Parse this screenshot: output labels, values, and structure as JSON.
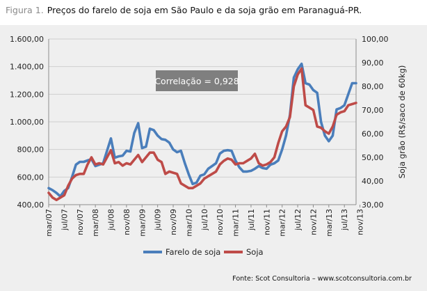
{
  "figure": {
    "label": "Figura 1.",
    "title": "Preços do farelo de soja em São Paulo e da soja grão em Paranaguá-PR.",
    "source": "Fonte: Scot Consultoria – www.scotconsultoria.com.br"
  },
  "chart_data": {
    "type": "line",
    "title": "Preços do farelo de soja em São Paulo e da soja grão em Paranaguá-PR.",
    "xlabel": "",
    "ylabel": "",
    "y2label": "Soja grão (R$/saco de 60kg)",
    "ylim": [
      400,
      1600
    ],
    "y2lim": [
      30,
      100
    ],
    "yticks": [
      "400,00",
      "600,00",
      "800,00",
      "1.000,00",
      "1.200,00",
      "1.400,00",
      "1.600,00"
    ],
    "y2ticks": [
      "30,00",
      "40,00",
      "50,00",
      "60,00",
      "70,00",
      "80,00",
      "90,00",
      "100,00"
    ],
    "x_tick_labels": [
      "mar/07",
      "jul/07",
      "nov/07",
      "mar/08",
      "jul/08",
      "nov/08",
      "mar/09",
      "jul/09",
      "nov/09",
      "mar/10",
      "jul/10",
      "nov/10",
      "mar/11",
      "jul/11",
      "nov/11",
      "mar/12",
      "jul/12",
      "nov/12",
      "mar/13",
      "jul/13",
      "nov/13"
    ],
    "grid": true,
    "legend_position": "bottom",
    "annotation": "Correlação = 0,928",
    "colors": {
      "farelo": "#4a7ebb",
      "soja": "#be4b48",
      "annotation_bg": "#7f7f7f",
      "panel_bg": "#efefef"
    },
    "series": [
      {
        "name": "Farelo de soja",
        "axis": "left",
        "values": [
          520,
          505,
          485,
          460,
          500,
          520,
          600,
          690,
          710,
          710,
          720,
          730,
          680,
          690,
          700,
          790,
          880,
          740,
          750,
          755,
          790,
          785,
          920,
          990,
          810,
          820,
          950,
          940,
          900,
          875,
          870,
          850,
          800,
          780,
          790,
          700,
          620,
          550,
          560,
          610,
          620,
          660,
          680,
          700,
          770,
          790,
          795,
          790,
          720,
          670,
          640,
          640,
          645,
          660,
          680,
          665,
          660,
          690,
          700,
          720,
          800,
          900,
          1050,
          1320,
          1380,
          1420,
          1280,
          1270,
          1230,
          1210,
          1000,
          900,
          860,
          900,
          1090,
          1100,
          1120,
          1200,
          1280,
          1280
        ]
      },
      {
        "name": "Soja",
        "axis": "right",
        "values": [
          35,
          33,
          32,
          33,
          34,
          38,
          41,
          42.5,
          43,
          43,
          47,
          50,
          47,
          47.5,
          47,
          50,
          53,
          47.5,
          48,
          46.5,
          47.5,
          47,
          49,
          51,
          48,
          50,
          52,
          52,
          49,
          48,
          43,
          44,
          43.5,
          43,
          39,
          38,
          37,
          37,
          38,
          39,
          41,
          42,
          43,
          44,
          47,
          48.5,
          49.5,
          49,
          47,
          47.5,
          47.5,
          48.5,
          49.5,
          51.5,
          47.5,
          46.5,
          47,
          48,
          50,
          56,
          61,
          63,
          67,
          80,
          85,
          87.5,
          72,
          71,
          70,
          63,
          62.5,
          61,
          60,
          63,
          68,
          69,
          69.5,
          72,
          72.5,
          73
        ]
      }
    ]
  }
}
